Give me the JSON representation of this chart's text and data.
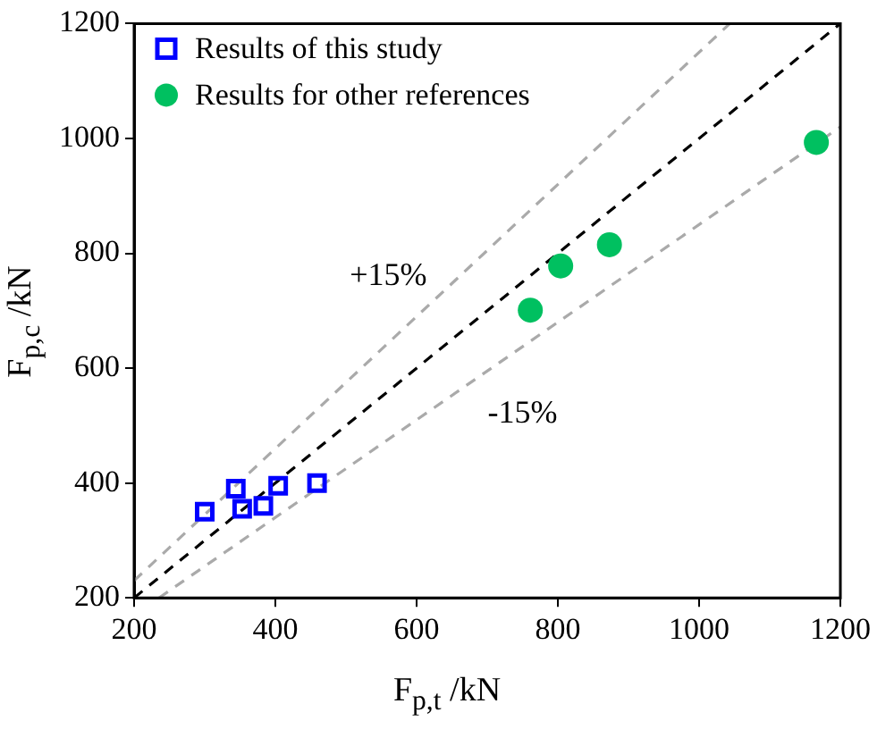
{
  "chart_data": {
    "type": "scatter",
    "xlabel": "F$_{p,t}$ /kN",
    "ylabel": "F$_{p,c}$ /kN",
    "xlim": [
      200,
      1200
    ],
    "xticks": [
      200,
      400,
      600,
      800,
      1000,
      1200
    ],
    "ylim": [
      200,
      1200
    ],
    "yticks": [
      200,
      400,
      600,
      800,
      1000,
      1200
    ],
    "grid": false,
    "legend": "top left",
    "annotations": [
      "+15%",
      "-15%"
    ],
    "series": [
      {
        "name": "Results of this study",
        "type": "scatter",
        "marker": "square",
        "color": "#0000ff",
        "x": [
          300,
          344,
          353,
          383,
          404,
          459
        ],
        "values": [
          350,
          390,
          355,
          360,
          395,
          400
        ]
      },
      {
        "name": "Results for other references",
        "type": "scatter",
        "marker": "circle",
        "color": "#00c060",
        "x": [
          761,
          804,
          873,
          1166
        ],
        "values": [
          701,
          778,
          815,
          993
        ]
      },
      {
        "type": "line",
        "marker": "none",
        "line_style": "dashed",
        "color": "#000000",
        "x": [
          200,
          1200
        ],
        "values": [
          200,
          1200
        ]
      },
      {
        "type": "line",
        "marker": "none",
        "line_style": "dashed",
        "color": "#aaaaaa",
        "x": [
          200,
          1043.5
        ],
        "values": [
          230,
          1200
        ]
      },
      {
        "type": "line",
        "marker": "none",
        "line_style": "dashed",
        "color": "#aaaaaa",
        "x": [
          235.3,
          1200
        ],
        "values": [
          200,
          1020
        ]
      }
    ]
  }
}
